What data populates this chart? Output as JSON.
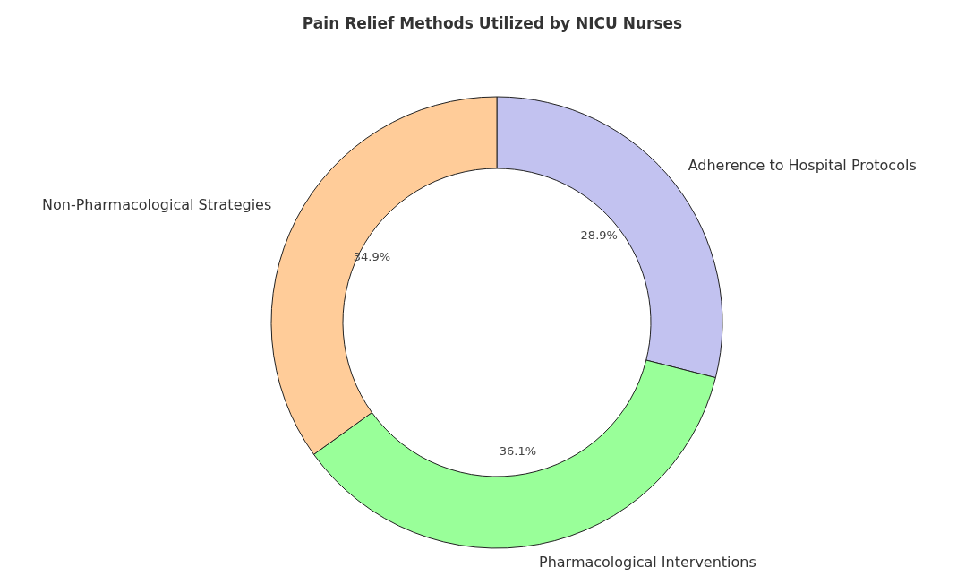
{
  "chart_data": {
    "type": "donut",
    "title": "Pain Relief Methods Utilized by NICU Nurses",
    "categories": [
      "Adherence to Hospital Protocols",
      "Pharmacological Interventions",
      "Non-Pharmacological Strategies"
    ],
    "values": [
      28.9,
      36.1,
      34.9
    ],
    "value_labels": [
      "28.9%",
      "36.1%",
      "34.9%"
    ],
    "colors": [
      "#c2c2f0",
      "#99ff99",
      "#ffcc99"
    ]
  }
}
